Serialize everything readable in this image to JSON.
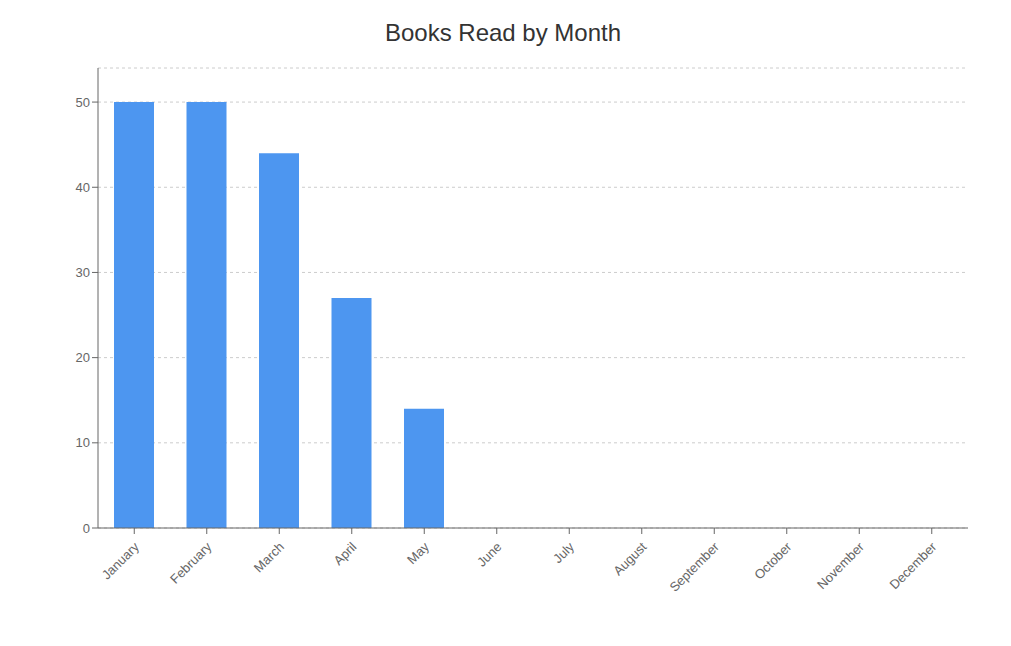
{
  "chart_data": {
    "type": "bar",
    "title": "Books Read by Month",
    "categories": [
      "January",
      "February",
      "March",
      "April",
      "May",
      "June",
      "July",
      "August",
      "September",
      "October",
      "November",
      "December"
    ],
    "values": [
      50,
      50,
      44,
      27,
      14,
      0,
      0,
      0,
      0,
      0,
      0,
      0
    ],
    "color": "#4d96f0",
    "ylim": [
      0,
      54
    ],
    "yticks": [
      0,
      10,
      20,
      30,
      40,
      50
    ],
    "grid": true
  }
}
